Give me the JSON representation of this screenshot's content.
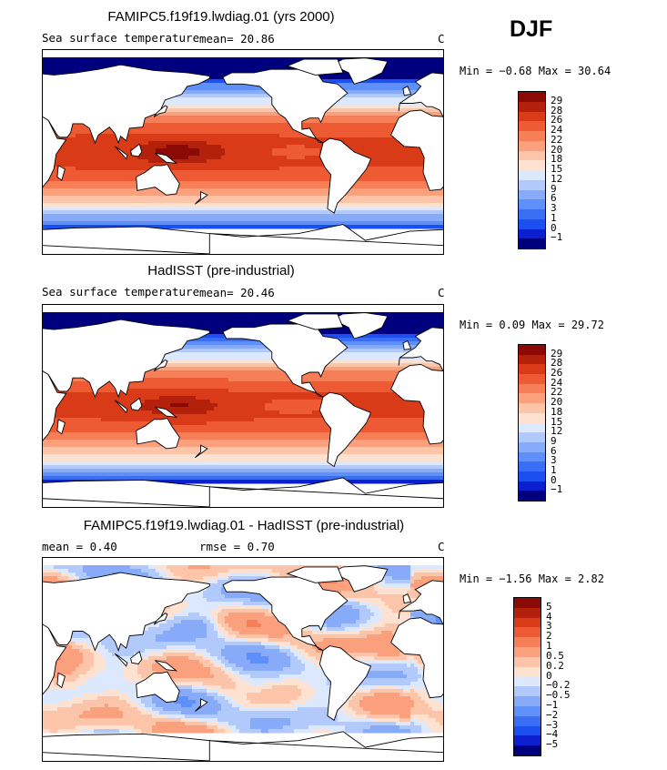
{
  "season": "DJF",
  "colors": {
    "sst_scale": [
      "#00007f",
      "#0b1fd0",
      "#1c4ff0",
      "#3a6ff5",
      "#5f8ff8",
      "#87abf9",
      "#b1c9fb",
      "#dce8fd",
      "#fde2d2",
      "#fcc4a8",
      "#fba07d",
      "#f77f58",
      "#ee5a33",
      "#d93a18",
      "#b3200b",
      "#8c0a05"
    ],
    "diff_scale": [
      "#00007f",
      "#0b1fd0",
      "#1c4ff0",
      "#3a6ff5",
      "#5f8ff8",
      "#87abf9",
      "#b1c9fb",
      "#dce8fd",
      "#fde2d2",
      "#fcc4a8",
      "#fba07d",
      "#f77f58",
      "#ee5a33",
      "#d93a18",
      "#b3200b",
      "#8c0a05"
    ],
    "land": "#ffffff",
    "coast": "#000000"
  },
  "panels": [
    {
      "title": "FAMIPC5.f19f19.lwdiag.01 (yrs 2000)",
      "subtitle_left": "Sea surface temperature",
      "mean_label": "mean=   20.86",
      "units": "C",
      "min_max": "Min =   −0.68  Max =   30.64",
      "colorbar_ticks": [
        "29",
        "28",
        "26",
        "24",
        "22",
        "20",
        "18",
        "15",
        "12",
        "9",
        "6",
        "3",
        "1",
        "0",
        "−1"
      ],
      "field": "model"
    },
    {
      "title": "HadISST (pre-industrial)",
      "subtitle_left": "Sea surface temperature",
      "mean_label": "mean=   20.46",
      "units": "C",
      "min_max": "Min =    0.09  Max =   29.72",
      "colorbar_ticks": [
        "29",
        "28",
        "26",
        "24",
        "22",
        "20",
        "18",
        "15",
        "12",
        "9",
        "6",
        "3",
        "1",
        "0",
        "−1"
      ],
      "field": "obs"
    },
    {
      "title": "FAMIPC5.f19f19.lwdiag.01 - HadISST (pre-industrial)",
      "subtitle_left": "mean =    0.40",
      "subtitle_mid": "rmse =    0.70",
      "units": "C",
      "min_max": "Min =   −1.56  Max =    2.82",
      "colorbar_ticks": [
        "5",
        "4",
        "3",
        "2",
        "1",
        "0.5",
        "0.2",
        "0",
        "−0.2",
        "−0.5",
        "−1",
        "−2",
        "−3",
        "−4",
        "−5"
      ],
      "field": "diff"
    }
  ]
}
